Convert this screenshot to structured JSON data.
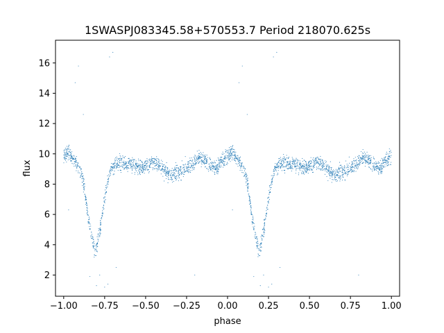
{
  "chart_data": {
    "type": "scatter",
    "title": "1SWASPJ083345.58+570553.7 Period 218070.625s",
    "xlabel": "phase",
    "ylabel": "flux",
    "xlim": [
      -1.05,
      1.05
    ],
    "ylim": [
      0.6,
      17.5
    ],
    "grid": false,
    "marker_color": "#1f77b4",
    "x_ticks": [
      -1.0,
      -0.75,
      -0.5,
      -0.25,
      0.0,
      0.25,
      0.5,
      0.75,
      1.0
    ],
    "x_tick_labels": [
      "−1.00",
      "−0.75",
      "−0.50",
      "−0.25",
      "0.00",
      "0.25",
      "0.50",
      "0.75",
      "1.00"
    ],
    "y_ticks": [
      2,
      4,
      6,
      8,
      10,
      12,
      14,
      16
    ],
    "y_tick_labels": [
      "2",
      "4",
      "6",
      "8",
      "10",
      "12",
      "14",
      "16"
    ],
    "curve_profile": [
      [
        0.0,
        9.9
      ],
      [
        0.03,
        10.1
      ],
      [
        0.06,
        9.6
      ],
      [
        0.09,
        9.1
      ],
      [
        0.11,
        8.6
      ],
      [
        0.13,
        7.4
      ],
      [
        0.15,
        5.8
      ],
      [
        0.17,
        4.6
      ],
      [
        0.19,
        3.7
      ],
      [
        0.2,
        3.8
      ],
      [
        0.22,
        4.9
      ],
      [
        0.24,
        6.3
      ],
      [
        0.26,
        7.7
      ],
      [
        0.28,
        8.7
      ],
      [
        0.31,
        9.3
      ],
      [
        0.36,
        9.4
      ],
      [
        0.42,
        9.3
      ],
      [
        0.48,
        9.1
      ],
      [
        0.55,
        9.5
      ],
      [
        0.6,
        9.1
      ],
      [
        0.65,
        8.6
      ],
      [
        0.72,
        8.9
      ],
      [
        0.78,
        9.3
      ],
      [
        0.83,
        9.8
      ],
      [
        0.88,
        9.4
      ],
      [
        0.93,
        9.0
      ],
      [
        0.97,
        9.6
      ],
      [
        1.0,
        9.9
      ]
    ],
    "outliers": [
      [
        -0.91,
        15.8
      ],
      [
        -0.93,
        14.7
      ],
      [
        -0.88,
        12.6
      ],
      [
        -0.7,
        16.7
      ],
      [
        -0.72,
        16.4
      ],
      [
        -0.78,
        2.0
      ],
      [
        -0.8,
        1.3
      ],
      [
        -0.73,
        1.4
      ],
      [
        -0.75,
        1.2
      ],
      [
        -0.84,
        1.9
      ],
      [
        0.09,
        15.8
      ],
      [
        0.07,
        14.7
      ],
      [
        0.12,
        12.6
      ],
      [
        0.3,
        16.7
      ],
      [
        0.28,
        16.4
      ],
      [
        0.22,
        2.0
      ],
      [
        0.2,
        1.3
      ],
      [
        0.27,
        1.4
      ],
      [
        0.25,
        1.2
      ],
      [
        0.16,
        1.9
      ],
      [
        -0.97,
        6.3
      ],
      [
        0.03,
        6.3
      ],
      [
        -0.2,
        2.0
      ],
      [
        0.8,
        2.0
      ],
      [
        -0.68,
        2.5
      ],
      [
        0.32,
        2.5
      ]
    ]
  }
}
